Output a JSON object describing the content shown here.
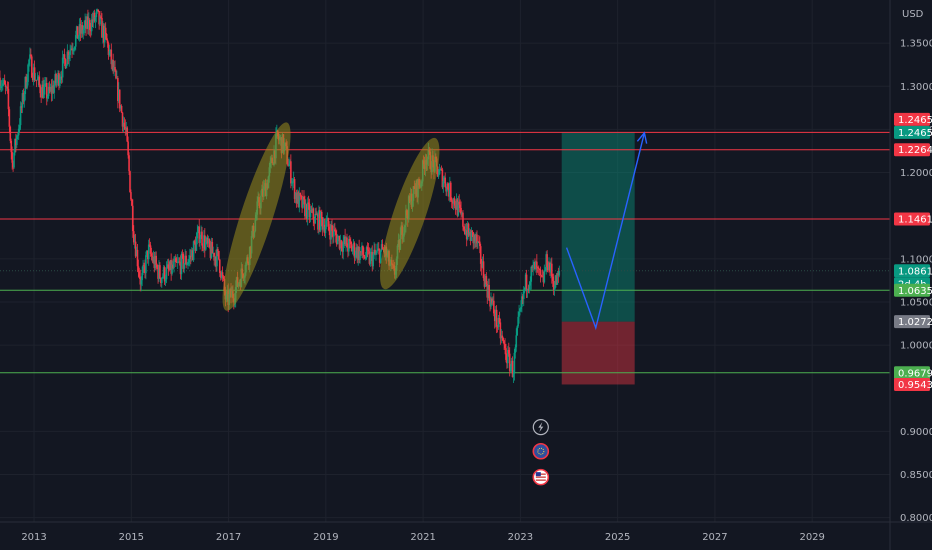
{
  "chart_data": {
    "type": "candlestick",
    "currency_label": "USD",
    "x_tick_labels": [
      "2013",
      "2015",
      "2017",
      "2019",
      "2021",
      "2023",
      "2025",
      "2027",
      "2029"
    ],
    "x_ticks": [
      2013,
      2015,
      2017,
      2019,
      2021,
      2023,
      2025,
      2027,
      2029
    ],
    "xlim": [
      2012.3,
      2030.6
    ],
    "y_ticks": [
      0.8,
      0.85,
      0.9,
      1.0,
      1.05,
      1.1,
      1.2,
      1.25,
      1.3,
      1.35
    ],
    "y_tick_labels": [
      "0.80000",
      "0.85000",
      "0.90000",
      "1.00000",
      "1.05000",
      "1.10000",
      "1.20000",
      "1.25000",
      "1.30000",
      "1.35000"
    ],
    "ylim": [
      0.795,
      1.4
    ],
    "grid": true,
    "price_path": [
      [
        2012.3,
        1.31
      ],
      [
        2012.45,
        1.29
      ],
      [
        2012.55,
        1.21
      ],
      [
        2012.7,
        1.26
      ],
      [
        2012.9,
        1.33
      ],
      [
        2013.1,
        1.3
      ],
      [
        2013.3,
        1.29
      ],
      [
        2013.5,
        1.31
      ],
      [
        2013.7,
        1.34
      ],
      [
        2013.9,
        1.36
      ],
      [
        2014.1,
        1.37
      ],
      [
        2014.3,
        1.38
      ],
      [
        2014.5,
        1.35
      ],
      [
        2014.7,
        1.3
      ],
      [
        2014.9,
        1.24
      ],
      [
        2015.05,
        1.13
      ],
      [
        2015.2,
        1.07
      ],
      [
        2015.35,
        1.11
      ],
      [
        2015.6,
        1.08
      ],
      [
        2015.9,
        1.09
      ],
      [
        2016.2,
        1.1
      ],
      [
        2016.4,
        1.13
      ],
      [
        2016.6,
        1.11
      ],
      [
        2016.8,
        1.1
      ],
      [
        2016.95,
        1.05
      ],
      [
        2017.1,
        1.06
      ],
      [
        2017.4,
        1.1
      ],
      [
        2017.6,
        1.16
      ],
      [
        2017.8,
        1.19
      ],
      [
        2018.0,
        1.24
      ],
      [
        2018.15,
        1.23
      ],
      [
        2018.4,
        1.17
      ],
      [
        2018.7,
        1.15
      ],
      [
        2019.0,
        1.14
      ],
      [
        2019.3,
        1.12
      ],
      [
        2019.6,
        1.11
      ],
      [
        2019.9,
        1.1
      ],
      [
        2020.2,
        1.11
      ],
      [
        2020.4,
        1.08
      ],
      [
        2020.55,
        1.13
      ],
      [
        2020.75,
        1.17
      ],
      [
        2020.95,
        1.19
      ],
      [
        2021.05,
        1.22
      ],
      [
        2021.2,
        1.21
      ],
      [
        2021.45,
        1.19
      ],
      [
        2021.7,
        1.16
      ],
      [
        2021.9,
        1.13
      ],
      [
        2022.1,
        1.12
      ],
      [
        2022.3,
        1.07
      ],
      [
        2022.5,
        1.03
      ],
      [
        2022.7,
        0.99
      ],
      [
        2022.85,
        0.97
      ],
      [
        2022.95,
        1.02
      ],
      [
        2023.1,
        1.07
      ],
      [
        2023.3,
        1.09
      ],
      [
        2023.45,
        1.07
      ],
      [
        2023.55,
        1.1
      ],
      [
        2023.7,
        1.07
      ],
      [
        2023.8,
        1.08
      ]
    ],
    "horizontal_levels": [
      {
        "value": 1.24652,
        "color": "#f23645"
      },
      {
        "value": 1.22645,
        "color": "#f23645"
      },
      {
        "value": 1.14618,
        "color": "#f23645"
      },
      {
        "value": 1.06355,
        "color": "#4caf50"
      },
      {
        "value": 0.96793,
        "color": "#4caf50"
      }
    ],
    "price_tags": [
      {
        "label": "1.24652",
        "value": 1.24652,
        "offset": -13,
        "color": "#f23645"
      },
      {
        "label": "1.24652",
        "value": 1.24652,
        "offset": 0,
        "color": "#089981"
      },
      {
        "label": "1.22645",
        "value": 1.22645,
        "offset": 0,
        "color": "#f23645"
      },
      {
        "label": "1.14618",
        "value": 1.14618,
        "offset": 0,
        "color": "#f23645"
      },
      {
        "label": "1.08614",
        "value": 1.08614,
        "offset": 0,
        "color": "#089981"
      },
      {
        "label": "2d 4h",
        "value": 1.08614,
        "offset": 13,
        "color": "#089981"
      },
      {
        "label": "1.06355",
        "value": 1.06355,
        "offset": 0,
        "color": "#4caf50"
      },
      {
        "label": "1.02728",
        "value": 1.02728,
        "offset": 0,
        "color": "#787b86"
      },
      {
        "label": "0.96793",
        "value": 0.96793,
        "offset": 0,
        "color": "#4caf50"
      },
      {
        "label": "0.95436",
        "value": 0.95436,
        "offset": 0,
        "color": "#f23645"
      }
    ],
    "current_price_line": 1.08614,
    "position": {
      "x_start": 2023.85,
      "x_end": 2025.35,
      "entry": 1.0272,
      "target": 1.2465,
      "stop": 0.9544,
      "profit_color": "#089981",
      "loss_color": "#f23645"
    },
    "ellipses": [
      {
        "x1": 2016.95,
        "y1": 1.04,
        "x2": 2018.2,
        "y2": 1.258,
        "color": "#9b8c1c"
      },
      {
        "x1": 2020.2,
        "y1": 1.065,
        "x2": 2021.25,
        "y2": 1.24,
        "color": "#9b8c1c"
      }
    ],
    "forecast_path": [
      [
        2023.95,
        1.113
      ],
      [
        2024.55,
        1.02
      ],
      [
        2025.55,
        1.246
      ]
    ],
    "forecast_color": "#2962ff",
    "event_icons": [
      {
        "name": "lightning-icon",
        "x": 2023.42,
        "y": 0.905
      },
      {
        "name": "globe-flag-icon",
        "x": 2023.42,
        "y": 0.877
      },
      {
        "name": "us-flag-icon",
        "x": 2023.42,
        "y": 0.847
      }
    ]
  }
}
